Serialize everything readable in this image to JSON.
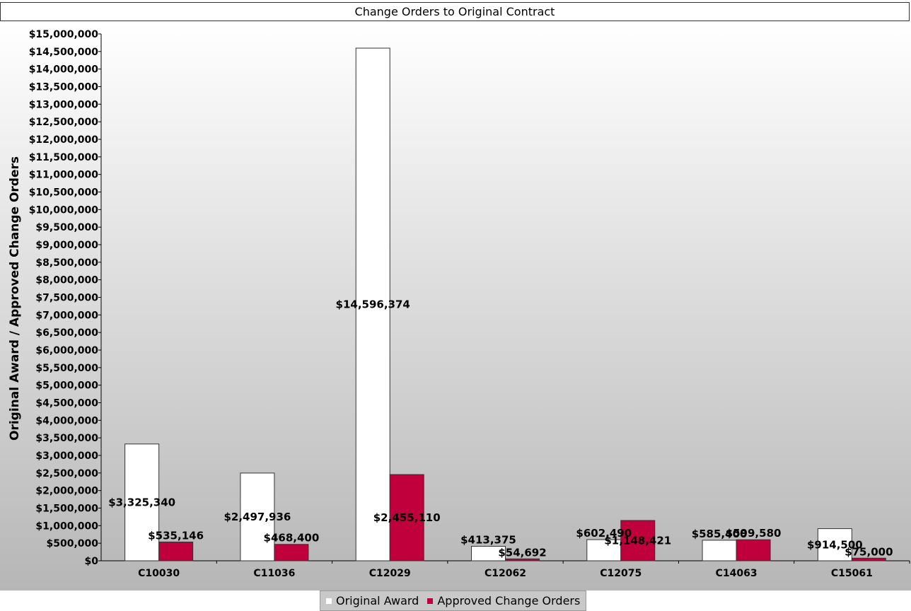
{
  "chart_data": {
    "type": "bar",
    "title": "Change Orders to Original Contract",
    "xlabel": "",
    "ylabel": "Original Award / Approved Change Orders",
    "ylim": [
      0,
      15000000
    ],
    "ytick_step": 500000,
    "ytick_labels": [
      "$0",
      "$500,000",
      "$1,000,000",
      "$1,500,000",
      "$2,000,000",
      "$2,500,000",
      "$3,000,000",
      "$3,500,000",
      "$4,000,000",
      "$4,500,000",
      "$5,000,000",
      "$5,500,000",
      "$6,000,000",
      "$6,500,000",
      "$7,000,000",
      "$7,500,000",
      "$8,000,000",
      "$8,500,000",
      "$9,000,000",
      "$9,500,000",
      "$10,000,000",
      "$10,500,000",
      "$11,000,000",
      "$11,500,000",
      "$12,000,000",
      "$12,500,000",
      "$13,000,000",
      "$13,500,000",
      "$14,000,000",
      "$14,500,000",
      "$15,000,000"
    ],
    "categories": [
      "C10030",
      "C11036",
      "C12029",
      "C12062",
      "C12075",
      "C14063",
      "C15061"
    ],
    "series": [
      {
        "name": "Original Award",
        "color": "#ffffff",
        "values": [
          3325340,
          2497936,
          14596374,
          413375,
          602490,
          585400,
          914500
        ],
        "labels": [
          "$3,325,340",
          "$2,497,936",
          "$14,596,374",
          "$413,375",
          "$602,490",
          "$585,400",
          "$914,500"
        ]
      },
      {
        "name": "Approved Change Orders",
        "color": "#c0003c",
        "values": [
          535146,
          468400,
          2455110,
          54692,
          1148421,
          599580,
          75000
        ],
        "labels": [
          "$535,146",
          "$468,400",
          "$2,455,110",
          "$54,692",
          "$1,148,421",
          "$599,580",
          "$75,000"
        ]
      }
    ],
    "grid": false,
    "legend_position": "bottom-center",
    "background": "vertical gradient white to grey"
  }
}
